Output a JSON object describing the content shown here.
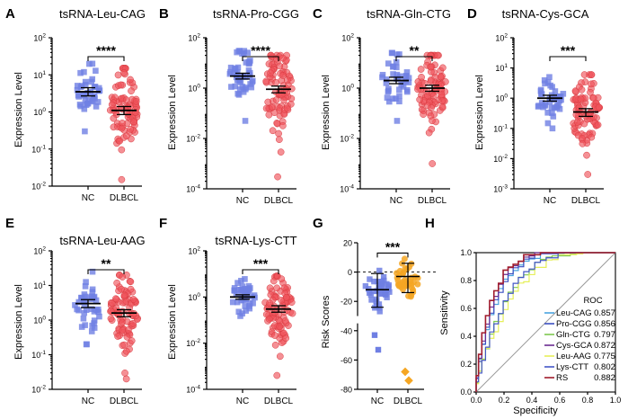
{
  "figure": {
    "panels": [
      {
        "id": "A",
        "title": "tsRNA-Leu-CAG",
        "type": "scatter-dot",
        "ylabel": "Expression Level",
        "scale": "log",
        "ylim": [
          0.01,
          100
        ],
        "yticks": [
          {
            "base": "10",
            "exp": "2"
          },
          {
            "base": "10",
            "exp": "1"
          },
          {
            "base": "10",
            "exp": "0"
          },
          {
            "base": "10",
            "exp": "-1"
          },
          {
            "base": "10",
            "exp": "-2"
          }
        ],
        "ytick_values": [
          100,
          10,
          1,
          0.1,
          0.01
        ],
        "groups": [
          {
            "name": "NC",
            "mean": 3.5,
            "sem_low": 2.7,
            "sem_high": 4.5,
            "min": 0.3,
            "max": 20,
            "n": 40,
            "color": "#6f7fe3",
            "shape": "square"
          },
          {
            "name": "DLBCL",
            "mean": 1.1,
            "sem_low": 0.85,
            "sem_high": 1.4,
            "min": 0.015,
            "max": 15,
            "n": 90,
            "color": "#f0555c",
            "shape": "circle"
          }
        ],
        "significance": "****"
      },
      {
        "id": "B",
        "title": "tsRNA-Pro-CGG",
        "type": "scatter-dot",
        "ylabel": "Expression Level",
        "scale": "log",
        "ylim": [
          0.0001,
          100
        ],
        "yticks": [
          {
            "base": "10",
            "exp": "2"
          },
          {
            "base": "10",
            "exp": "0"
          },
          {
            "base": "10",
            "exp": "-2"
          },
          {
            "base": "10",
            "exp": "-4"
          }
        ],
        "ytick_values": [
          100,
          1,
          0.01,
          0.0001
        ],
        "groups": [
          {
            "name": "NC",
            "mean": 3.0,
            "sem_low": 2.3,
            "sem_high": 3.9,
            "min": 0.05,
            "max": 30,
            "n": 45,
            "color": "#6f7fe3",
            "shape": "square"
          },
          {
            "name": "DLBCL",
            "mean": 0.9,
            "sem_low": 0.65,
            "sem_high": 1.2,
            "min": 0.0003,
            "max": 20,
            "n": 90,
            "color": "#f0555c",
            "shape": "circle"
          }
        ],
        "significance": "****"
      },
      {
        "id": "C",
        "title": "tsRNA-Gln-CTG",
        "type": "scatter-dot",
        "ylabel": "Expression Level",
        "scale": "log",
        "ylim": [
          0.0001,
          100
        ],
        "yticks": [
          {
            "base": "10",
            "exp": "2"
          },
          {
            "base": "10",
            "exp": "0"
          },
          {
            "base": "10",
            "exp": "-2"
          },
          {
            "base": "10",
            "exp": "-4"
          }
        ],
        "ytick_values": [
          100,
          1,
          0.01,
          0.0001
        ],
        "groups": [
          {
            "name": "NC",
            "mean": 2.0,
            "sem_low": 1.5,
            "sem_high": 2.7,
            "min": 0.05,
            "max": 25,
            "n": 40,
            "color": "#6f7fe3",
            "shape": "square"
          },
          {
            "name": "DLBCL",
            "mean": 1.0,
            "sem_low": 0.75,
            "sem_high": 1.3,
            "min": 0.001,
            "max": 20,
            "n": 90,
            "color": "#f0555c",
            "shape": "circle"
          }
        ],
        "significance": "**"
      },
      {
        "id": "D",
        "title": "tsRNA-Cys-GCA",
        "type": "scatter-dot",
        "ylabel": "Expression Level",
        "scale": "log",
        "ylim": [
          0.001,
          100
        ],
        "yticks": [
          {
            "base": "10",
            "exp": "2"
          },
          {
            "base": "10",
            "exp": "1"
          },
          {
            "base": "10",
            "exp": "0"
          },
          {
            "base": "10",
            "exp": "-1"
          },
          {
            "base": "10",
            "exp": "-2"
          },
          {
            "base": "10",
            "exp": "-3"
          }
        ],
        "ytick_values": [
          100,
          10,
          1,
          0.1,
          0.01,
          0.001
        ],
        "groups": [
          {
            "name": "NC",
            "mean": 1.0,
            "sem_low": 0.8,
            "sem_high": 1.25,
            "min": 0.1,
            "max": 5,
            "n": 40,
            "color": "#6f7fe3",
            "shape": "square"
          },
          {
            "name": "DLBCL",
            "mean": 0.35,
            "sem_low": 0.25,
            "sem_high": 0.45,
            "min": 0.003,
            "max": 6,
            "n": 90,
            "color": "#f0555c",
            "shape": "circle"
          }
        ],
        "significance": "***"
      },
      {
        "id": "E",
        "title": "tsRNA-Leu-AAG",
        "type": "scatter-dot",
        "ylabel": "Expression Level",
        "scale": "log",
        "ylim": [
          0.01,
          100
        ],
        "yticks": [
          {
            "base": "10",
            "exp": "2"
          },
          {
            "base": "10",
            "exp": "1"
          },
          {
            "base": "10",
            "exp": "0"
          },
          {
            "base": "10",
            "exp": "-1"
          },
          {
            "base": "10",
            "exp": "-2"
          }
        ],
        "ytick_values": [
          100,
          10,
          1,
          0.1,
          0.01
        ],
        "groups": [
          {
            "name": "NC",
            "mean": 3.0,
            "sem_low": 2.3,
            "sem_high": 3.9,
            "min": 0.2,
            "max": 25,
            "n": 40,
            "color": "#6f7fe3",
            "shape": "square"
          },
          {
            "name": "DLBCL",
            "mean": 1.6,
            "sem_low": 1.25,
            "sem_high": 2.0,
            "min": 0.02,
            "max": 20,
            "n": 90,
            "color": "#f0555c",
            "shape": "circle"
          }
        ],
        "significance": "**"
      },
      {
        "id": "F",
        "title": "tsRNA-Lys-CTT",
        "type": "scatter-dot",
        "ylabel": "Expression Level",
        "scale": "log",
        "ylim": [
          0.0001,
          100
        ],
        "yticks": [
          {
            "base": "10",
            "exp": "2"
          },
          {
            "base": "10",
            "exp": "0"
          },
          {
            "base": "10",
            "exp": "-2"
          },
          {
            "base": "10",
            "exp": "-4"
          }
        ],
        "ytick_values": [
          100,
          1,
          0.01,
          0.0001
        ],
        "groups": [
          {
            "name": "NC",
            "mean": 1.0,
            "sem_low": 0.8,
            "sem_high": 1.25,
            "min": 0.15,
            "max": 6,
            "n": 40,
            "color": "#6f7fe3",
            "shape": "square"
          },
          {
            "name": "DLBCL",
            "mean": 0.3,
            "sem_low": 0.22,
            "sem_high": 0.42,
            "min": 0.0004,
            "max": 8,
            "n": 90,
            "color": "#f0555c",
            "shape": "circle"
          }
        ],
        "significance": "***"
      }
    ],
    "risk_panel": {
      "id": "G",
      "type": "scatter-dot",
      "ylabel": "Risk Scores",
      "ylim": [
        -80,
        20
      ],
      "yticks": [
        20,
        0,
        -20,
        -40,
        -60,
        -80
      ],
      "groups": [
        {
          "name": "NC",
          "mean": -12,
          "sd_low": -24,
          "sd_high": -1,
          "color": "#6f7fe3",
          "shape": "square",
          "outliers": [
            -43,
            -53
          ]
        },
        {
          "name": "DLBCL",
          "mean": -3,
          "sd_low": -14,
          "sd_high": 6,
          "color": "#f5a623",
          "shape": "circle",
          "outliers": [
            -68,
            -74
          ]
        }
      ],
      "significance": "***"
    },
    "roc_panel": {
      "id": "H",
      "type": "line",
      "xlabel": "Specificity",
      "ylabel": "Sensitivity",
      "xlim": [
        0,
        1
      ],
      "ylim": [
        0,
        1
      ],
      "xticks": [
        "0.0",
        "0.2",
        "0.4",
        "0.6",
        "0.8",
        "1.0"
      ],
      "yticks": [
        "0.0",
        "0.2",
        "0.4",
        "0.6",
        "0.8",
        "1.0"
      ],
      "legend_title": "ROC",
      "series": [
        {
          "name": "Leu-CAG",
          "auc": "0.857",
          "color": "#4aa3df"
        },
        {
          "name": "Pro-CGG",
          "auc": "0.856",
          "color": "#3a4fc2"
        },
        {
          "name": "Gln-CTG",
          "auc": "0.797",
          "color": "#7ec850"
        },
        {
          "name": "Cys-GCA",
          "auc": "0.872",
          "color": "#6a2c91"
        },
        {
          "name": "Leu-AAG",
          "auc": "0.775",
          "color": "#e6ef5a"
        },
        {
          "name": "Lys-CTT",
          "auc": "0.802",
          "color": "#4356c6"
        },
        {
          "name": "RS",
          "auc": "0.882",
          "color": "#a01b2c"
        }
      ]
    },
    "x_categories": [
      "NC",
      "DLBCL"
    ]
  }
}
